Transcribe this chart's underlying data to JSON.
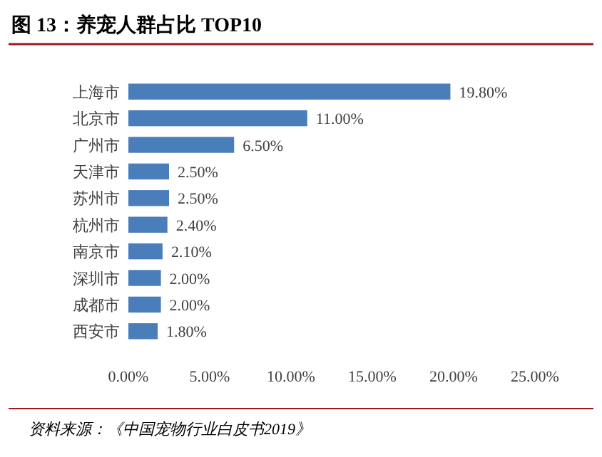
{
  "chart_data": {
    "type": "bar",
    "orientation": "horizontal",
    "title": "图 13：养宠人群占比 TOP10",
    "categories": [
      "上海市",
      "北京市",
      "广州市",
      "天津市",
      "苏州市",
      "杭州市",
      "南京市",
      "深圳市",
      "成都市",
      "西安市"
    ],
    "values": [
      19.8,
      11.0,
      6.5,
      2.5,
      2.5,
      2.4,
      2.1,
      2.0,
      2.0,
      1.8
    ],
    "value_labels": [
      "19.80%",
      "11.00%",
      "6.50%",
      "2.50%",
      "2.50%",
      "2.40%",
      "2.10%",
      "2.00%",
      "2.00%",
      "1.80%"
    ],
    "color": "#4a7ebb",
    "xlim": [
      0,
      25
    ],
    "xticks": [
      {
        "value": 0,
        "label": "0.00%"
      },
      {
        "value": 5,
        "label": "5.00%"
      },
      {
        "value": 10,
        "label": "10.00%"
      },
      {
        "value": 15,
        "label": "15.00%"
      },
      {
        "value": 20,
        "label": "20.00%"
      },
      {
        "value": 25,
        "label": "25.00%"
      }
    ],
    "grid": false,
    "annotations": [
      "资料来源：《中国宠物行业白皮书2019》"
    ]
  }
}
